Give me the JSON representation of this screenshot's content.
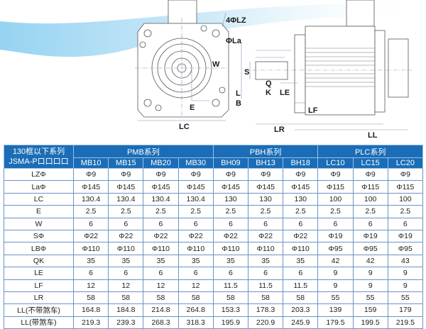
{
  "drawing": {
    "labels": {
      "lz": "4ΦLZ",
      "la": "ΦLa",
      "w": "W",
      "e": "E",
      "lc": "LC",
      "s": "S",
      "q": "Q",
      "k": "K",
      "le": "LE",
      "l": "L",
      "b": "B",
      "lf": "LF",
      "lr": "LR",
      "ll": "LL"
    },
    "colors": {
      "swoosh": "#8fd0f0",
      "dimension": "#8a8cc4",
      "line": "#555555"
    }
  },
  "table": {
    "header_color": "#1a6db6",
    "corner": [
      "130框以下系列",
      "JSMA-P口口口口"
    ],
    "groups": [
      "PMB系列",
      "PBH系列",
      "PLC系列"
    ],
    "models": [
      "MB10",
      "MB15",
      "MB20",
      "MB30",
      "BH09",
      "BH13",
      "BH18",
      "LC10",
      "LC15",
      "LC20"
    ],
    "rows": [
      {
        "label": "LZΦ",
        "values": [
          "Φ9",
          "Φ9",
          "Φ9",
          "Φ9",
          "Φ9",
          "Φ9",
          "Φ9",
          "Φ9",
          "Φ9",
          "Φ9"
        ]
      },
      {
        "label": "LaΦ",
        "values": [
          "Φ145",
          "Φ145",
          "Φ145",
          "Φ145",
          "Φ145",
          "Φ145",
          "Φ145",
          "Φ115",
          "Φ115",
          "Φ115"
        ]
      },
      {
        "label": "LC",
        "values": [
          "130.4",
          "130.4",
          "130.4",
          "130.4",
          "130",
          "130",
          "130",
          "100",
          "100",
          "100"
        ]
      },
      {
        "label": "E",
        "values": [
          "2.5",
          "2.5",
          "2.5",
          "2.5",
          "2.5",
          "2.5",
          "2.5",
          "2.5",
          "2.5",
          "2.5"
        ]
      },
      {
        "label": "W",
        "values": [
          "6",
          "6",
          "6",
          "6",
          "6",
          "6",
          "6",
          "6",
          "6",
          "6"
        ]
      },
      {
        "label": "SΦ",
        "values": [
          "Φ22",
          "Φ22",
          "Φ22",
          "Φ22",
          "Φ22",
          "Φ22",
          "Φ22",
          "Φ19",
          "Φ19",
          "Φ19"
        ]
      },
      {
        "label": "LBΦ",
        "values": [
          "Φ110",
          "Φ110",
          "Φ110",
          "Φ110",
          "Φ110",
          "Φ110",
          "Φ110",
          "Φ95",
          "Φ95",
          "Φ95"
        ]
      },
      {
        "label": "QK",
        "values": [
          "35",
          "35",
          "35",
          "35",
          "35",
          "35",
          "35",
          "42",
          "42",
          "43"
        ]
      },
      {
        "label": "LE",
        "values": [
          "6",
          "6",
          "6",
          "6",
          "6",
          "6",
          "6",
          "9",
          "9",
          "9"
        ]
      },
      {
        "label": "LF",
        "values": [
          "12",
          "12",
          "12",
          "12",
          "11.5",
          "11.5",
          "11.5",
          "9",
          "9",
          "9"
        ]
      },
      {
        "label": "LR",
        "values": [
          "58",
          "58",
          "58",
          "58",
          "58",
          "58",
          "58",
          "55",
          "55",
          "55"
        ]
      },
      {
        "label": "LL(不带煞车)",
        "values": [
          "164.8",
          "184.8",
          "214.8",
          "264.8",
          "153.3",
          "178.3",
          "203.3",
          "139",
          "159",
          "179"
        ]
      },
      {
        "label": "LL(带煞车)",
        "values": [
          "219.3",
          "239.3",
          "268.3",
          "318.3",
          "195.9",
          "220.9",
          "245.9",
          "179.5",
          "199.5",
          "219.5"
        ]
      }
    ]
  }
}
